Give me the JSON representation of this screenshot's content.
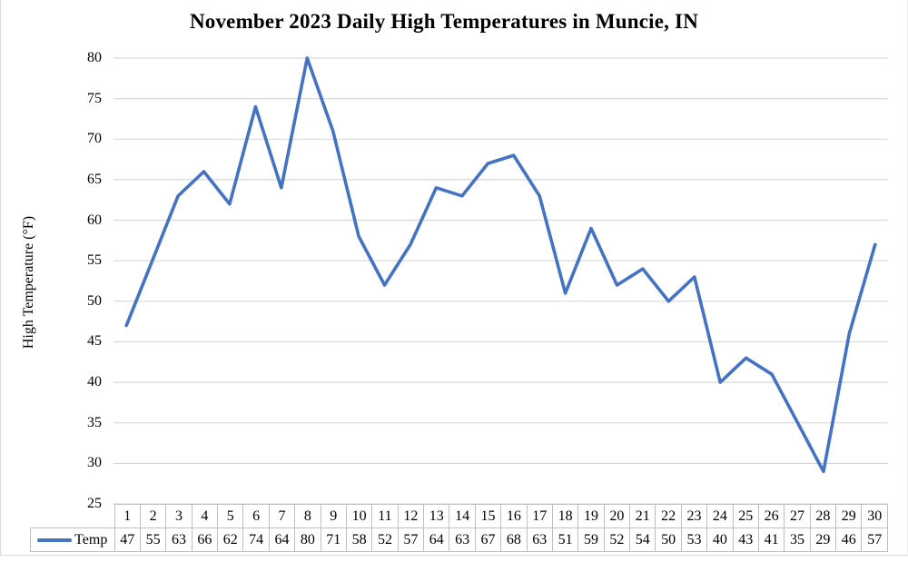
{
  "chart_data": {
    "type": "line",
    "title": "November 2023 Daily High Temperatures in Muncie, IN",
    "xlabel": "",
    "ylabel": "High Temperature (°F)",
    "ylim": [
      25,
      80
    ],
    "y_ticks": [
      25,
      30,
      35,
      40,
      45,
      50,
      55,
      60,
      65,
      70,
      75,
      80
    ],
    "categories": [
      1,
      2,
      3,
      4,
      5,
      6,
      7,
      8,
      9,
      10,
      11,
      12,
      13,
      14,
      15,
      16,
      17,
      18,
      19,
      20,
      21,
      22,
      23,
      24,
      25,
      26,
      27,
      28,
      29,
      30
    ],
    "series": [
      {
        "name": "Temp",
        "values": [
          47,
          55,
          63,
          66,
          62,
          74,
          64,
          80,
          71,
          58,
          52,
          57,
          64,
          63,
          67,
          68,
          63,
          51,
          59,
          52,
          54,
          50,
          53,
          40,
          43,
          41,
          35,
          29,
          46,
          57
        ]
      }
    ],
    "grid": "horizontal",
    "legend_position": "data-table-left",
    "colors": {
      "line": "#4472C4",
      "gridline": "#d9d9d9",
      "table_border": "#bfbfbf",
      "text": "#000000"
    }
  }
}
